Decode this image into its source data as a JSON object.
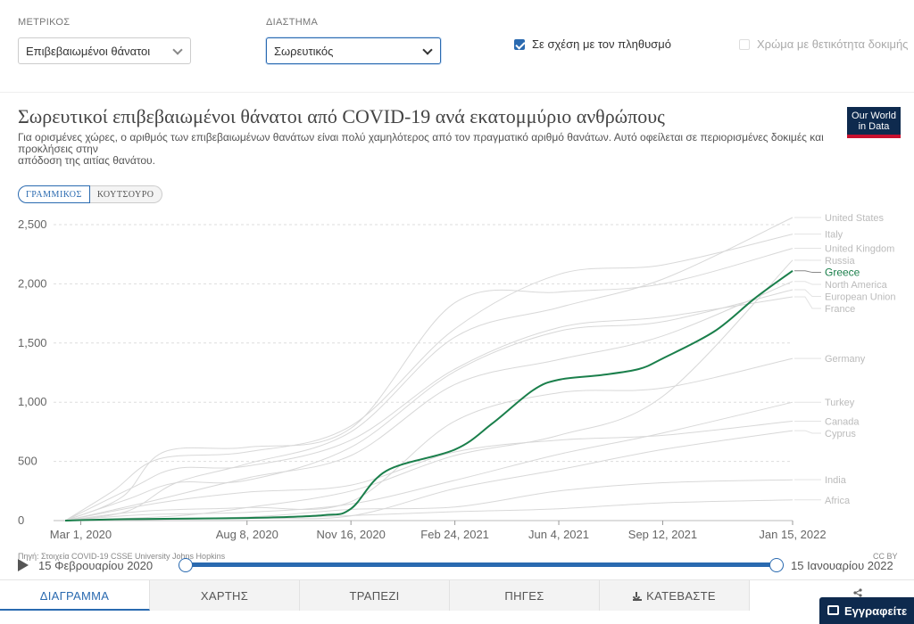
{
  "controls": {
    "metric_label": "ΜΕΤΡΙΚΟΣ",
    "metric_value": "Επιβεβαιωμένοι θάνατοι",
    "interval_label": "ΔΙΑΣΤΗΜΑ",
    "interval_value": "Σωρευτικός",
    "per_capita_label": "Σε σχέση με τον πληθυσμό",
    "per_capita_checked": true,
    "color_label": "Χρώμα με θετικότητα δοκιμής",
    "color_checked": false
  },
  "header": {
    "title": "Σωρευτικοί επιβεβαιωμένοι θάνατοι από COVID-19 ανά εκατομμύριο ανθρώπους",
    "subtitle_line1": "Για ορισμένες χώρες, ο αριθμός των επιβεβαιωμένων θανάτων είναι πολύ χαμηλότερος από τον πραγματικό αριθμό θανάτων. Αυτό οφείλεται σε περιορισμένες δοκιμές και προκλήσεις στην",
    "subtitle_line2": "απόδοση της αιτίας θανάτου.",
    "logo_line1": "Our World",
    "logo_line2": "in Data"
  },
  "scale_toggle": {
    "linear": "ΓΡΑΜΜΙΚΟΣ",
    "log": "ΚΟΥΤΣΟΥΡΟ"
  },
  "footer": {
    "source": "Πηγή: Στοιχεία COVID-19 CSSE University Johns Hopkins",
    "license": "CC BY",
    "timeline_start": "15 Φεβρουαρίου 2020",
    "timeline_end": "15 Ιανουαρίου 2022",
    "timeline_start_fraction": 0,
    "timeline_end_fraction": 1
  },
  "bottom_tabs": [
    "ΔΙΑΓΡΑΜΜΑ",
    "ΧΑΡΤΗΣ",
    "ΤΡΑΠΕΖΙ",
    "ΠΗΓΕΣ",
    "ΚΑΤΕΒΑΣΤΕ"
  ],
  "subscribe_label": "Εγγραφείτε",
  "colors": {
    "highlight": "#1a7f4b",
    "muted": "#d8d8d8",
    "accent": "#2a6ab0"
  },
  "chart_data": {
    "type": "line",
    "title": "Σωρευτικοί επιβεβαιωμένοι θάνατοι από COVID-19 ανά εκατομμύριο ανθρώπους",
    "xlabel": "",
    "ylabel": "",
    "x_range": [
      "2020-02-15",
      "2022-01-15"
    ],
    "ylim": [
      0,
      2500
    ],
    "yticks": [
      0,
      500,
      1000,
      1500,
      2000,
      2500
    ],
    "ytick_labels": [
      "0",
      "500",
      "1,000",
      "1,500",
      "2,000",
      "2,500"
    ],
    "xticks": [
      "2020-03-01",
      "2020-08-08",
      "2020-11-16",
      "2021-02-24",
      "2021-06-04",
      "2021-09-12",
      "2022-01-15"
    ],
    "xtick_labels": [
      "Mar 1, 2020",
      "Aug 8, 2020",
      "Nov 16, 2020",
      "Feb 24, 2021",
      "Jun 4, 2021",
      "Sep 12, 2021",
      "Jan 15, 2022"
    ],
    "grid": true,
    "highlight": "Greece",
    "series": [
      {
        "name": "United States",
        "points": [
          [
            "2020-02-15",
            0
          ],
          [
            "2020-04-15",
            80
          ],
          [
            "2020-06-01",
            320
          ],
          [
            "2020-08-08",
            480
          ],
          [
            "2020-11-16",
            750
          ],
          [
            "2021-02-24",
            1550
          ],
          [
            "2021-06-04",
            1800
          ],
          [
            "2021-09-12",
            2040
          ],
          [
            "2022-01-15",
            2560
          ]
        ]
      },
      {
        "name": "Italy",
        "points": [
          [
            "2020-02-15",
            0
          ],
          [
            "2020-04-01",
            250
          ],
          [
            "2020-05-15",
            520
          ],
          [
            "2020-08-08",
            580
          ],
          [
            "2020-11-16",
            800
          ],
          [
            "2021-02-24",
            1620
          ],
          [
            "2021-06-04",
            2080
          ],
          [
            "2021-09-12",
            2160
          ],
          [
            "2022-01-15",
            2420
          ]
        ]
      },
      {
        "name": "United Kingdom",
        "points": [
          [
            "2020-02-15",
            0
          ],
          [
            "2020-04-10",
            200
          ],
          [
            "2020-05-20",
            580
          ],
          [
            "2020-08-08",
            620
          ],
          [
            "2020-11-16",
            780
          ],
          [
            "2021-02-24",
            1840
          ],
          [
            "2021-06-04",
            1930
          ],
          [
            "2021-09-12",
            2000
          ],
          [
            "2022-01-15",
            2300
          ]
        ]
      },
      {
        "name": "Russia",
        "points": [
          [
            "2020-02-15",
            0
          ],
          [
            "2020-06-01",
            40
          ],
          [
            "2020-08-08",
            110
          ],
          [
            "2020-11-16",
            250
          ],
          [
            "2021-02-24",
            550
          ],
          [
            "2021-06-04",
            720
          ],
          [
            "2021-09-12",
            1050
          ],
          [
            "2022-01-15",
            2200
          ]
        ]
      },
      {
        "name": "Greece",
        "points": [
          [
            "2020-02-15",
            0
          ],
          [
            "2020-04-15",
            12
          ],
          [
            "2020-08-08",
            22
          ],
          [
            "2020-10-20",
            45
          ],
          [
            "2020-11-16",
            100
          ],
          [
            "2020-12-20",
            420
          ],
          [
            "2021-02-24",
            600
          ],
          [
            "2021-04-01",
            820
          ],
          [
            "2021-05-10",
            1100
          ],
          [
            "2021-06-04",
            1190
          ],
          [
            "2021-07-15",
            1230
          ],
          [
            "2021-08-20",
            1280
          ],
          [
            "2021-09-12",
            1370
          ],
          [
            "2021-11-01",
            1600
          ],
          [
            "2021-12-10",
            1880
          ],
          [
            "2022-01-15",
            2110
          ]
        ]
      },
      {
        "name": "North America",
        "points": [
          [
            "2020-02-15",
            0
          ],
          [
            "2020-05-01",
            150
          ],
          [
            "2020-08-08",
            360
          ],
          [
            "2020-11-16",
            550
          ],
          [
            "2021-02-24",
            1150
          ],
          [
            "2021-06-04",
            1360
          ],
          [
            "2021-09-12",
            1560
          ],
          [
            "2022-01-15",
            2020
          ]
        ]
      },
      {
        "name": "European Union",
        "points": [
          [
            "2020-02-15",
            0
          ],
          [
            "2020-04-15",
            180
          ],
          [
            "2020-06-01",
            320
          ],
          [
            "2020-08-08",
            340
          ],
          [
            "2020-11-16",
            620
          ],
          [
            "2021-02-24",
            1260
          ],
          [
            "2021-06-04",
            1600
          ],
          [
            "2021-09-12",
            1680
          ],
          [
            "2022-01-15",
            1950
          ]
        ]
      },
      {
        "name": "France",
        "points": [
          [
            "2020-02-15",
            0
          ],
          [
            "2020-04-20",
            280
          ],
          [
            "2020-06-01",
            440
          ],
          [
            "2020-08-08",
            460
          ],
          [
            "2020-11-16",
            680
          ],
          [
            "2021-02-24",
            1280
          ],
          [
            "2021-06-04",
            1630
          ],
          [
            "2021-09-12",
            1720
          ],
          [
            "2022-01-15",
            1890
          ]
        ]
      },
      {
        "name": "Germany",
        "points": [
          [
            "2020-02-15",
            0
          ],
          [
            "2020-05-01",
            80
          ],
          [
            "2020-08-08",
            110
          ],
          [
            "2020-11-16",
            160
          ],
          [
            "2021-02-24",
            840
          ],
          [
            "2021-06-04",
            1080
          ],
          [
            "2021-09-12",
            1120
          ],
          [
            "2022-01-15",
            1370
          ]
        ]
      },
      {
        "name": "Turkey",
        "points": [
          [
            "2020-02-15",
            0
          ],
          [
            "2020-05-01",
            50
          ],
          [
            "2020-08-08",
            70
          ],
          [
            "2020-11-16",
            140
          ],
          [
            "2021-02-24",
            340
          ],
          [
            "2021-06-04",
            560
          ],
          [
            "2021-09-12",
            740
          ],
          [
            "2022-01-15",
            1000
          ]
        ]
      },
      {
        "name": "Canada",
        "points": [
          [
            "2020-02-15",
            0
          ],
          [
            "2020-05-15",
            150
          ],
          [
            "2020-08-08",
            240
          ],
          [
            "2020-11-16",
            300
          ],
          [
            "2021-02-24",
            580
          ],
          [
            "2021-06-04",
            680
          ],
          [
            "2021-09-12",
            720
          ],
          [
            "2022-01-15",
            840
          ]
        ]
      },
      {
        "name": "Cyprus",
        "points": [
          [
            "2020-02-15",
            0
          ],
          [
            "2020-08-08",
            20
          ],
          [
            "2020-11-16",
            40
          ],
          [
            "2021-02-24",
            270
          ],
          [
            "2021-06-04",
            430
          ],
          [
            "2021-09-12",
            600
          ],
          [
            "2022-01-15",
            760
          ]
        ]
      },
      {
        "name": "India",
        "points": [
          [
            "2020-02-15",
            0
          ],
          [
            "2020-08-08",
            30
          ],
          [
            "2020-11-16",
            95
          ],
          [
            "2021-02-24",
            115
          ],
          [
            "2021-06-04",
            250
          ],
          [
            "2021-09-12",
            320
          ],
          [
            "2022-01-15",
            345
          ]
        ]
      },
      {
        "name": "Africa",
        "points": [
          [
            "2020-02-15",
            0
          ],
          [
            "2020-08-08",
            20
          ],
          [
            "2020-11-16",
            42
          ],
          [
            "2021-02-24",
            75
          ],
          [
            "2021-06-04",
            100
          ],
          [
            "2021-09-12",
            150
          ],
          [
            "2022-01-15",
            175
          ]
        ]
      }
    ]
  }
}
